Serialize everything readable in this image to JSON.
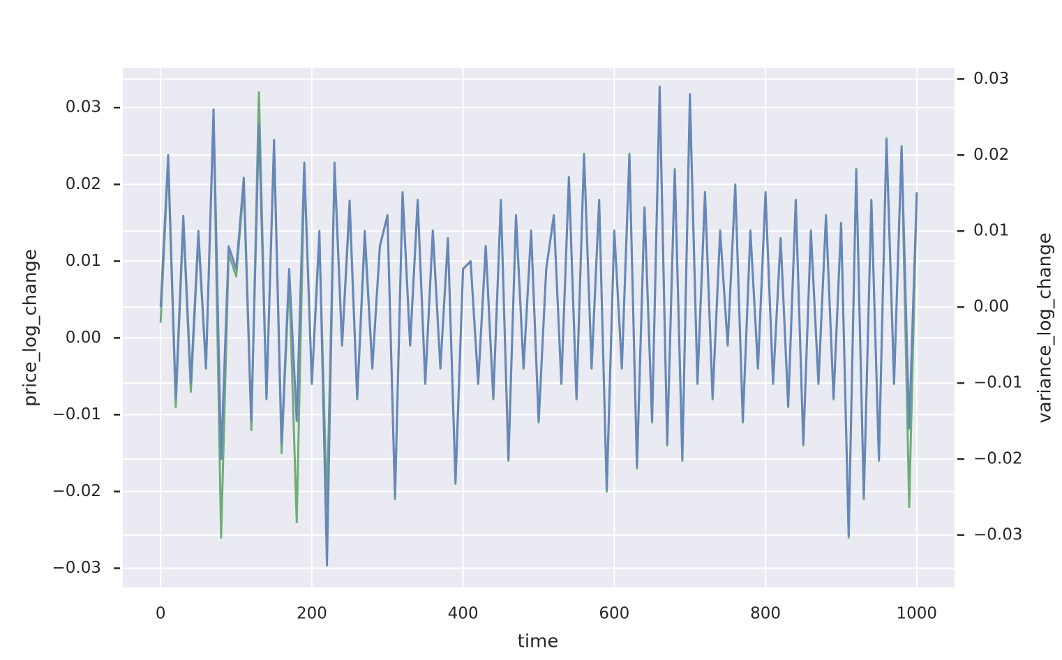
{
  "chart_data": {
    "type": "line",
    "xlabel": "time",
    "ylabel": "price_log_change",
    "y2label": "variance_log_change",
    "x": [
      0,
      10,
      20,
      30,
      40,
      50,
      60,
      70,
      80,
      90,
      100,
      110,
      120,
      130,
      140,
      150,
      160,
      170,
      180,
      190,
      200,
      210,
      220,
      230,
      240,
      250,
      260,
      270,
      280,
      290,
      300,
      310,
      320,
      330,
      340,
      350,
      360,
      370,
      380,
      390,
      400,
      410,
      420,
      430,
      440,
      450,
      460,
      470,
      480,
      490,
      500,
      510,
      520,
      530,
      540,
      550,
      560,
      570,
      580,
      590,
      600,
      610,
      620,
      630,
      640,
      650,
      660,
      670,
      680,
      690,
      700,
      710,
      720,
      730,
      740,
      750,
      760,
      770,
      780,
      790,
      800,
      810,
      820,
      830,
      840,
      850,
      860,
      870,
      880,
      890,
      900,
      910,
      920,
      930,
      940,
      950,
      960,
      970,
      980,
      990,
      1000
    ],
    "series": [
      {
        "color": "#6fac78",
        "axis": "y",
        "values": [
          0.002,
          0.023,
          -0.009,
          0.015,
          -0.007,
          0.013,
          -0.004,
          0.029,
          -0.026,
          0.011,
          0.008,
          0.02,
          -0.012,
          0.032,
          -0.008,
          0.025,
          -0.015,
          0.008,
          -0.024,
          0.022,
          -0.006,
          0.013,
          -0.022,
          0.022,
          -0.001,
          0.017,
          -0.008,
          0.013,
          -0.004,
          0.012,
          0.016,
          -0.021,
          0.019,
          -0.001,
          0.018,
          -0.006,
          0.014,
          -0.004,
          0.013,
          -0.019,
          0.009,
          0.01,
          -0.006,
          0.012,
          -0.008,
          0.018,
          -0.016,
          0.016,
          -0.004,
          0.014,
          -0.011,
          0.009,
          0.016,
          -0.006,
          0.021,
          -0.008,
          0.024,
          -0.004,
          0.018,
          -0.02,
          0.014,
          -0.004,
          0.024,
          -0.017,
          0.017,
          -0.011,
          0.032,
          -0.014,
          0.022,
          -0.016,
          0.031,
          -0.006,
          0.019,
          -0.008,
          0.014,
          -0.001,
          0.02,
          -0.011,
          0.014,
          -0.004,
          0.019,
          -0.006,
          0.013,
          -0.009,
          0.018,
          -0.014,
          0.014,
          -0.006,
          0.016,
          -0.008,
          0.015,
          -0.026,
          0.022,
          -0.021,
          0.018,
          -0.016,
          0.026,
          -0.006,
          0.025,
          -0.022,
          0.019
        ]
      },
      {
        "color": "#6787ba",
        "axis": "y2",
        "values": [
          0.0,
          0.02,
          -0.012,
          0.012,
          -0.01,
          0.01,
          -0.008,
          0.026,
          -0.02,
          0.008,
          0.005,
          0.017,
          -0.015,
          0.024,
          -0.012,
          0.022,
          -0.018,
          0.005,
          -0.015,
          0.019,
          -0.01,
          0.01,
          -0.034,
          0.019,
          -0.005,
          0.014,
          -0.012,
          0.01,
          -0.008,
          0.008,
          0.012,
          -0.025,
          0.015,
          -0.005,
          0.014,
          -0.01,
          0.01,
          -0.008,
          0.009,
          -0.023,
          0.005,
          0.006,
          -0.01,
          0.008,
          -0.012,
          0.014,
          -0.02,
          0.012,
          -0.008,
          0.01,
          -0.015,
          0.005,
          0.012,
          -0.01,
          0.017,
          -0.012,
          0.02,
          -0.008,
          0.014,
          -0.024,
          0.01,
          -0.008,
          0.02,
          -0.021,
          0.013,
          -0.015,
          0.029,
          -0.018,
          0.018,
          -0.02,
          0.028,
          -0.01,
          0.015,
          -0.012,
          0.01,
          -0.005,
          0.016,
          -0.015,
          0.01,
          -0.008,
          0.015,
          -0.01,
          0.009,
          -0.013,
          0.014,
          -0.018,
          0.01,
          -0.01,
          0.012,
          -0.012,
          0.011,
          -0.03,
          0.018,
          -0.025,
          0.014,
          -0.02,
          0.022,
          -0.01,
          0.021,
          -0.016,
          0.015
        ]
      }
    ],
    "xlim": [
      -50,
      1050
    ],
    "xticks": [
      0,
      200,
      400,
      600,
      800,
      1000
    ],
    "ylim": [
      -0.0325,
      0.0352
    ],
    "yticks": [
      {
        "value": -0.03,
        "label": "−0.03"
      },
      {
        "value": -0.02,
        "label": "−0.02"
      },
      {
        "value": -0.01,
        "label": "−0.01"
      },
      {
        "value": 0,
        "label": "0.00"
      },
      0.01,
      0.02,
      0.03
    ],
    "y2lim": [
      -0.0369,
      0.0315
    ],
    "y2ticks": [
      {
        "value": -0.03,
        "label": "−0.03"
      },
      {
        "value": -0.02,
        "label": "−0.02"
      },
      {
        "value": -0.01,
        "label": "−0.01"
      },
      {
        "value": 0,
        "label": "0.00"
      },
      0.01,
      0.02,
      0.03
    ],
    "grid": true
  }
}
